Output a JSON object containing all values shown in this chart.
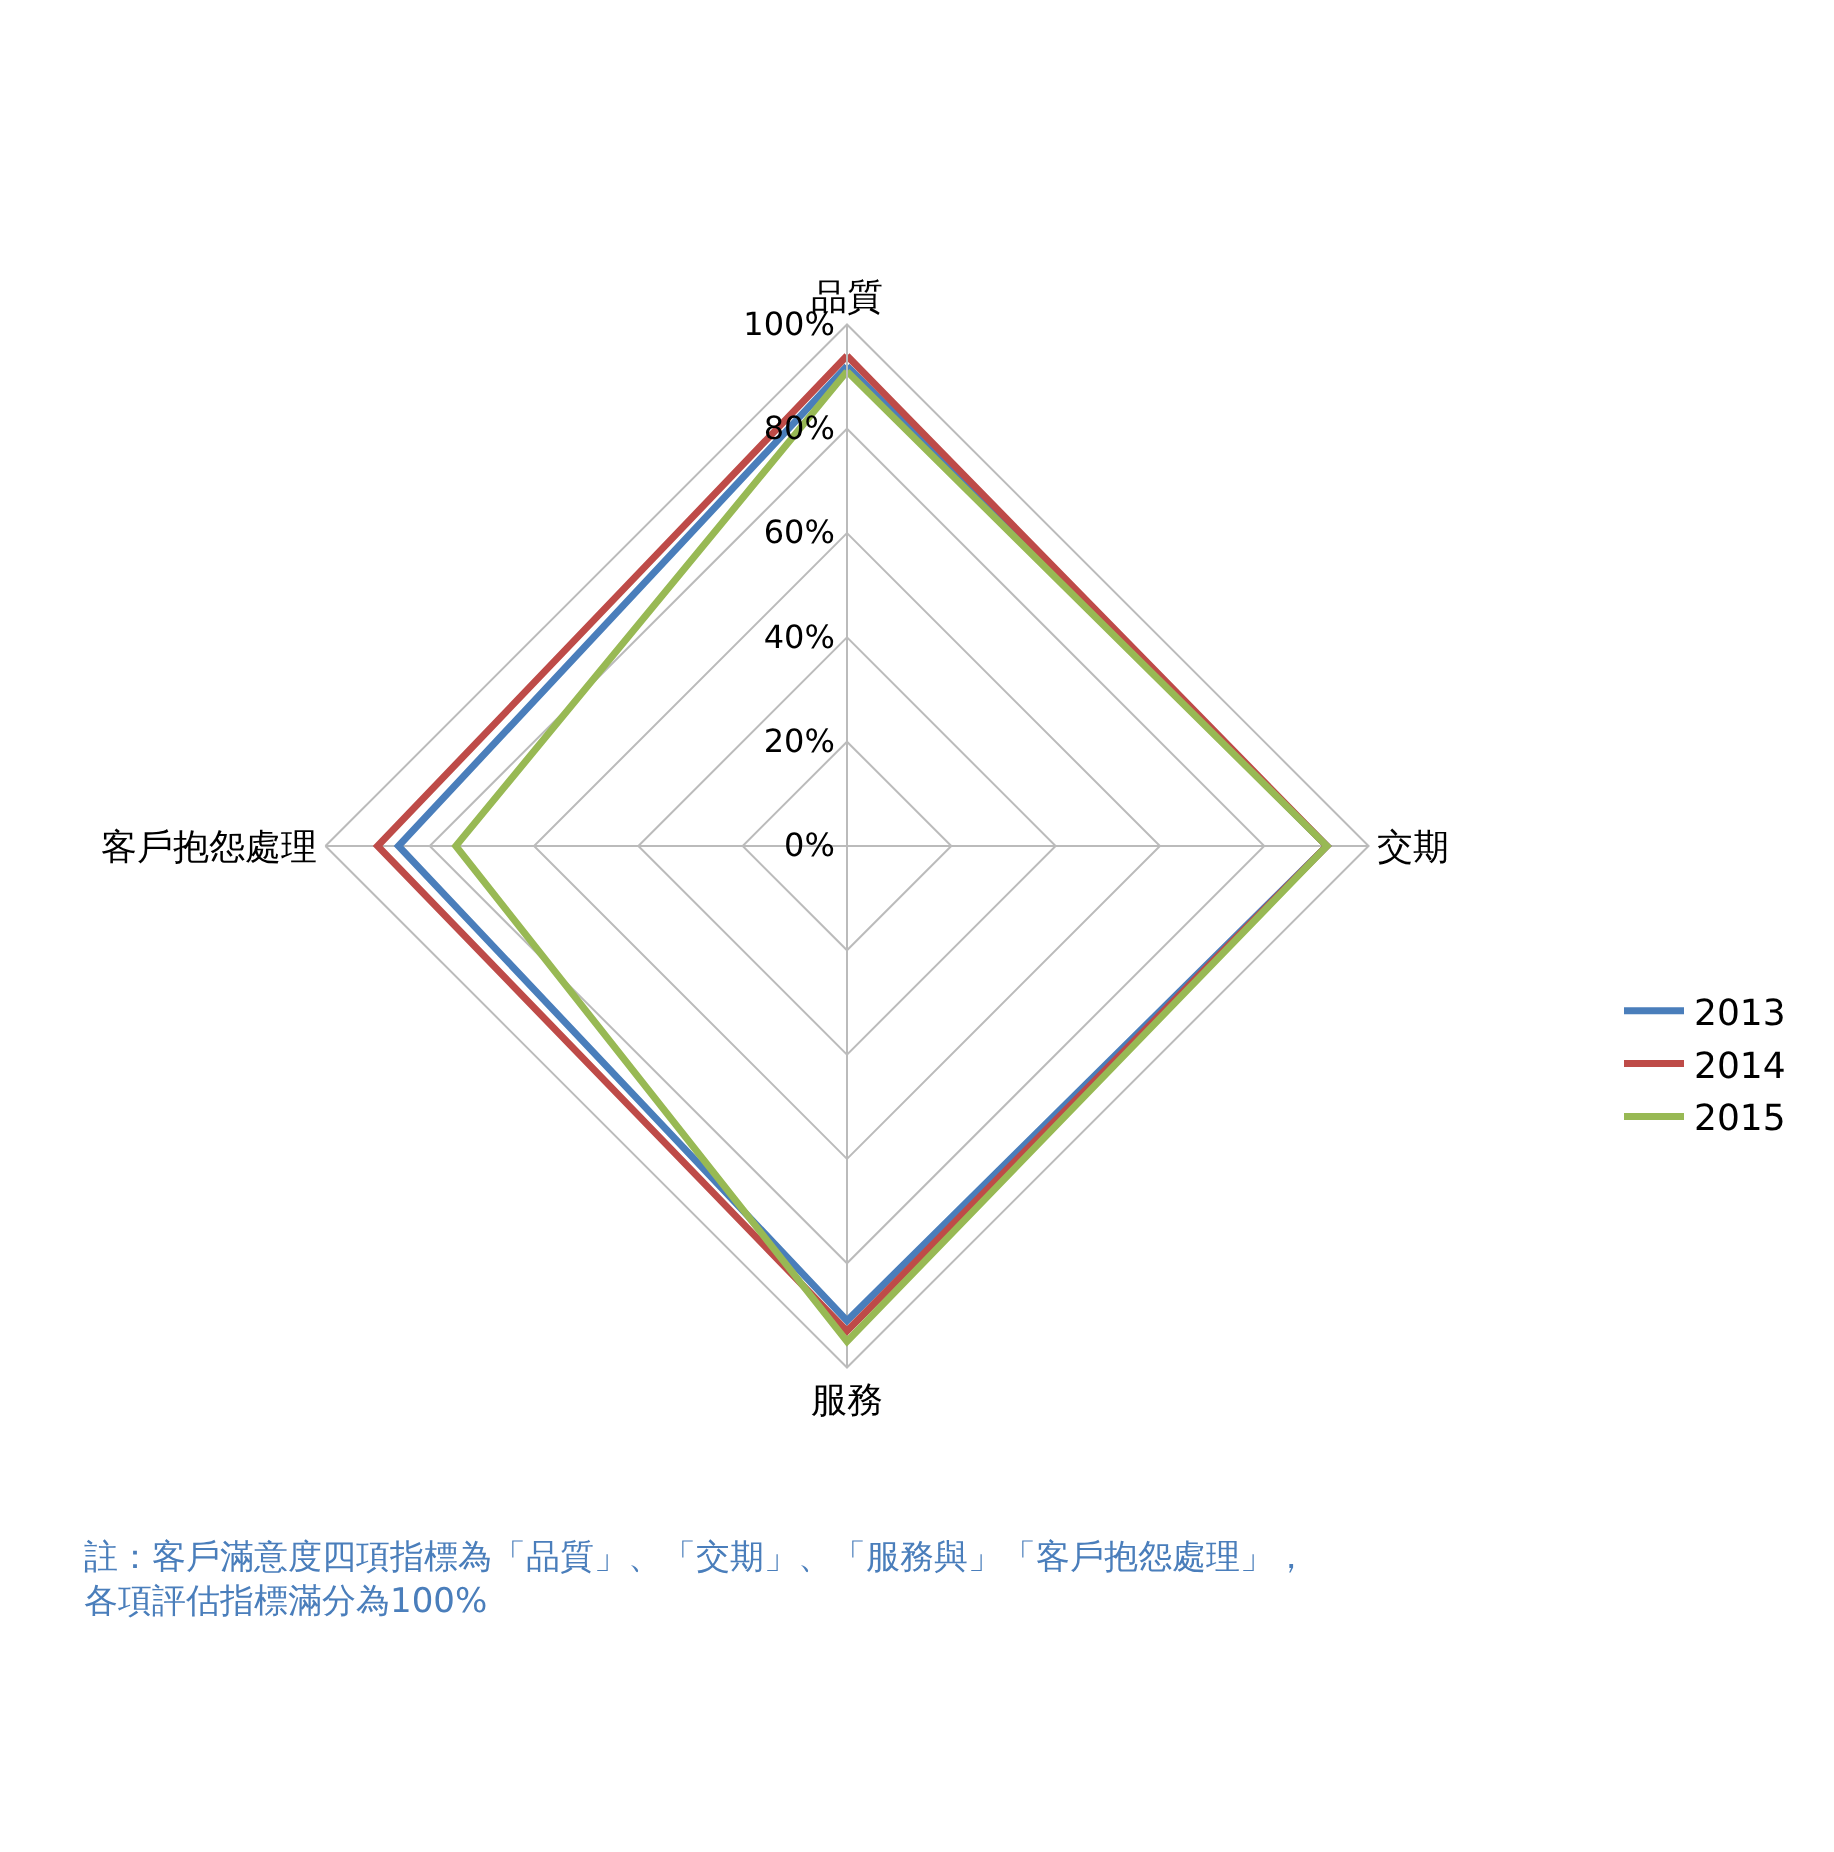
{
  "chart_data": {
    "type": "radar",
    "categories": [
      "品質",
      "交期",
      "服務",
      "客戶抱怨處理"
    ],
    "series": [
      {
        "name": "2013",
        "color": "#4a7ebb",
        "values": [
          92,
          92,
          91,
          86
        ]
      },
      {
        "name": "2014",
        "color": "#be4b48",
        "values": [
          94,
          92,
          93,
          90
        ]
      },
      {
        "name": "2015",
        "color": "#98b954",
        "values": [
          91,
          92,
          95,
          75
        ]
      }
    ],
    "ylim": [
      0,
      100
    ],
    "yticks": [
      {
        "value": 0,
        "label": "0%"
      },
      {
        "value": 20,
        "label": "20%"
      },
      {
        "value": 40,
        "label": "40%"
      },
      {
        "value": 60,
        "label": "60%"
      },
      {
        "value": 80,
        "label": "80%"
      },
      {
        "value": 100,
        "label": "100%"
      }
    ],
    "grid": true,
    "legend": "right",
    "marker": "none",
    "annotations": [
      "註：客戶滿意度四項指標為「品質」、「交期」、「服務與」「客戶抱怨處理」，各項評估指標滿分為100%"
    ]
  }
}
